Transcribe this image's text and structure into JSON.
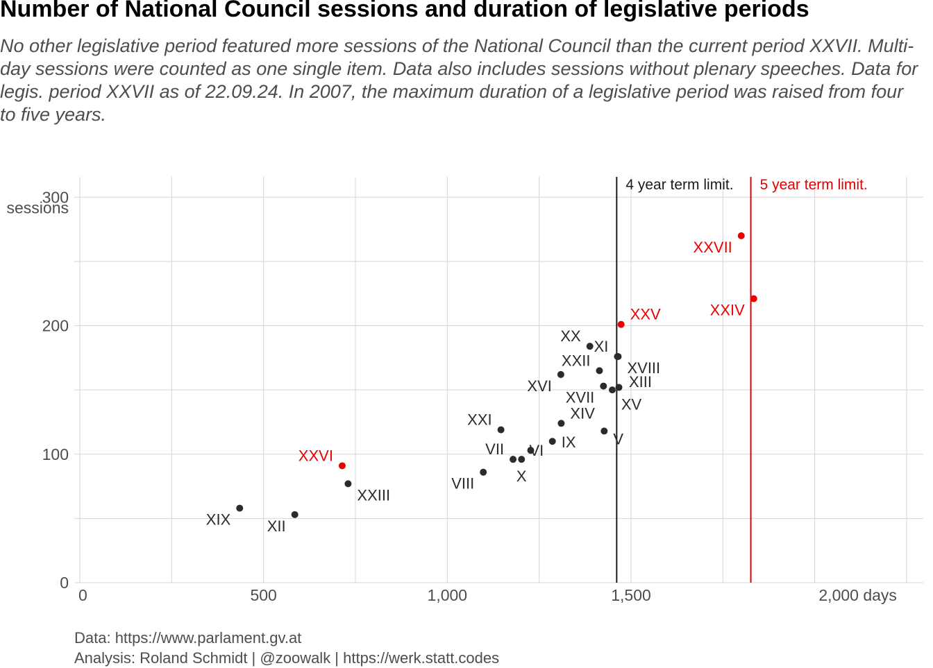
{
  "title": "Number of National Council sessions and duration of legislative periods",
  "subtitle": "No other legislative period featured more sessions of the National Council than the current period XXVII. Multi-day sessions were counted as one single item. Data also includes sessions without plenary speeches. Data for legis. period XXVII as of 22.09.24. In 2007, the maximum duration of a legislative period was raised from four to five years.",
  "caption": {
    "line1": "Data: https://www.parlament.gv.at",
    "line2": "Analysis: Roland Schmidt | @zoowalk | https://werk.statt.codes"
  },
  "colors": {
    "highlight": "#ee0000",
    "default_point": "#2b2b2e",
    "grid": "#d6d6d6",
    "four_year_line": "#1a1a1a",
    "five_year_line": "#dd0000"
  },
  "chart_data": {
    "type": "scatter",
    "xlabel": "days",
    "ylabel": "sessions",
    "xlim": [
      0,
      2250
    ],
    "ylim": [
      0,
      300
    ],
    "x_ticks": [
      0,
      500,
      1000,
      1500,
      2000
    ],
    "x_tick_labels": [
      "0",
      "500",
      "1,000",
      "1,500",
      "2,000 days"
    ],
    "y_ticks": [
      0,
      100,
      200,
      300
    ],
    "y_tick_labels": [
      "0",
      "100",
      "200",
      "300"
    ],
    "y_unit_label": "sessions",
    "grid": true,
    "vlines": [
      {
        "x": 1461,
        "label": "4 year term limit.",
        "color": "#1a1a1a"
      },
      {
        "x": 1826,
        "label": "5 year term limit.",
        "color": "#dd0000"
      }
    ],
    "points": [
      {
        "label": "XIX",
        "x": 435,
        "y": 58,
        "highlight": false,
        "label_side": "left",
        "label_dy": 1
      },
      {
        "label": "XII",
        "x": 585,
        "y": 53,
        "highlight": false,
        "label_side": "left",
        "label_dy": 1
      },
      {
        "label": "XXVI",
        "x": 714,
        "y": 91,
        "highlight": true,
        "label_side": "left",
        "label_dy": -1
      },
      {
        "label": "XXIII",
        "x": 730,
        "y": 77,
        "highlight": false,
        "label_side": "right",
        "label_dy": 1
      },
      {
        "label": "VIII",
        "x": 1098,
        "y": 86,
        "highlight": false,
        "label_side": "left",
        "label_dy": 1
      },
      {
        "label": "XXI",
        "x": 1146,
        "y": 119,
        "highlight": false,
        "label_side": "left",
        "label_dy": -1
      },
      {
        "label": "VII",
        "x": 1179,
        "y": 96,
        "highlight": false,
        "label_side": "left",
        "label_dy": -1
      },
      {
        "label": "X",
        "x": 1202,
        "y": 96,
        "highlight": false,
        "label_side": "below",
        "label_dy": 1
      },
      {
        "label": "VI",
        "x": 1227,
        "y": 103,
        "highlight": false,
        "label_side": "right",
        "label_dy": 0
      },
      {
        "label": "IX",
        "x": 1286,
        "y": 110,
        "highlight": false,
        "label_side": "right",
        "label_dy": 0
      },
      {
        "label": "XIV",
        "x": 1310,
        "y": 124,
        "highlight": false,
        "label_side": "right",
        "label_dy": -1
      },
      {
        "label": "XVI",
        "x": 1309,
        "y": 162,
        "highlight": false,
        "label_side": "left",
        "label_dy": 1
      },
      {
        "label": "XX",
        "x": 1388,
        "y": 184,
        "highlight": false,
        "label_side": "left",
        "label_dy": -1
      },
      {
        "label": "XXII",
        "x": 1414,
        "y": 165,
        "highlight": false,
        "label_side": "left",
        "label_dy": -1
      },
      {
        "label": "XVII",
        "x": 1425,
        "y": 153,
        "highlight": false,
        "label_side": "left",
        "label_dy": 1
      },
      {
        "label": "V",
        "x": 1427,
        "y": 118,
        "highlight": false,
        "label_side": "right",
        "label_dy": 1
      },
      {
        "label": "XIII",
        "x": 1449,
        "y": 150,
        "highlight": false,
        "label_side": "none",
        "label_dy": 0
      },
      {
        "label": "XV",
        "x": 1467,
        "y": 152,
        "highlight": false,
        "label_side": "below",
        "label_dy": 1
      },
      {
        "label": "XI",
        "x": 1463,
        "y": 176,
        "highlight": false,
        "label_side": "left",
        "label_dy": -1
      },
      {
        "label": "XVIII",
        "x": 1465,
        "y": 176,
        "highlight": false,
        "label_side": "right",
        "label_dy": 1
      },
      {
        "label": "XXV",
        "x": 1473,
        "y": 201,
        "highlight": true,
        "label_side": "right",
        "label_dy": -1
      },
      {
        "label": "XXVII",
        "x": 1800,
        "y": 270,
        "highlight": true,
        "label_side": "left",
        "label_dy": 1
      },
      {
        "label": "XXIV",
        "x": 1834,
        "y": 221,
        "highlight": true,
        "label_side": "left",
        "label_dy": 1
      }
    ]
  }
}
